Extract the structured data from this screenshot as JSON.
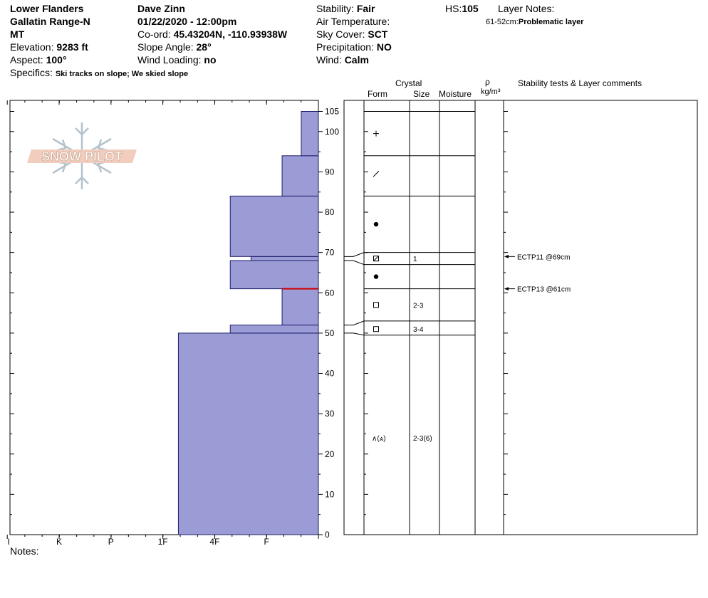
{
  "header": {
    "location": "Lower Flanders",
    "range": "Gallatin Range-N",
    "state": "MT",
    "elevation_label": "Elevation: ",
    "elevation_value": "9283 ft",
    "aspect_label": "Aspect: ",
    "aspect_value": "100°",
    "specifics_label": "Specifics: ",
    "specifics_value": "Ski tracks on slope; We skied slope",
    "observer": "Dave Zinn",
    "datetime": "01/22/2020 - 12:00pm",
    "coord_label": "Co-ord: ",
    "coord_value": "45.43204N, -110.93938W",
    "slope_label": "Slope Angle: ",
    "slope_value": "28°",
    "wind_loading_label": "Wind Loading: ",
    "wind_loading_value": "no",
    "stability_label": "Stability: ",
    "stability_value": "Fair",
    "air_temp_label": "Air Temperature:",
    "sky_label": "Sky Cover: ",
    "sky_value": "SCT",
    "precip_label": "Precipitation: ",
    "precip_value": "NO",
    "wind_label": "Wind: ",
    "wind_value": "Calm",
    "hs_label": "HS:",
    "hs_value": "105",
    "layer_notes_label": "Layer Notes:",
    "layer_note_range": "61-52cm:",
    "layer_note_text": "Problematic layer"
  },
  "logo": {
    "text": "SNOW PILOT"
  },
  "columns": {
    "crystal": "Crystal",
    "form": "Form",
    "size": "Size",
    "moisture": "Moisture",
    "rho": "ρ",
    "density_unit": "kg/m³",
    "comments": "Stability tests & Layer comments"
  },
  "notes_label": "Notes:",
  "colors": {
    "layer_fill": "#9b9bd6",
    "layer_stroke": "#1f1f6b",
    "problem_line": "#cc0000"
  },
  "chart_data": {
    "type": "bar",
    "orientation": "horizontal",
    "title": "",
    "xlabel": "",
    "ylabel": "",
    "hardness_scale": [
      "I",
      "K",
      "P",
      "1F",
      "4F",
      "F"
    ],
    "hardness_scale_note": "x value = number of steps from the right edge (0 = F ... 6 = I); tick labels printed as shown",
    "ylim": [
      0,
      108
    ],
    "y_ticks": [
      0,
      10,
      20,
      30,
      40,
      50,
      60,
      70,
      80,
      90,
      100,
      105
    ],
    "layers": [
      {
        "bottom": 0,
        "top": 50,
        "hardness_steps": 2.7
      },
      {
        "bottom": 50,
        "top": 52,
        "hardness_steps": 1.7
      },
      {
        "bottom": 52,
        "top": 61,
        "hardness_steps": 0.7
      },
      {
        "bottom": 61,
        "top": 68,
        "hardness_steps": 1.7
      },
      {
        "bottom": 68,
        "top": 69,
        "hardness_steps": 1.3
      },
      {
        "bottom": 69,
        "top": 84,
        "hardness_steps": 1.7
      },
      {
        "bottom": 84,
        "top": 94,
        "hardness_steps": 0.7
      },
      {
        "bottom": 94,
        "top": 105,
        "hardness_steps": 0.33
      }
    ],
    "problem_line_height": 61,
    "layer_boundaries": [
      105,
      94,
      84,
      70,
      67,
      61,
      53,
      49.5
    ],
    "crystal_rows": [
      {
        "height": 99.5,
        "form": "plus",
        "size": ""
      },
      {
        "height": 89.5,
        "form": "slash",
        "size": ""
      },
      {
        "height": 77,
        "form": "dot",
        "size": ""
      },
      {
        "height": 68.5,
        "form": "box-x",
        "size": "1"
      },
      {
        "height": 64,
        "form": "dot",
        "size": ""
      },
      {
        "height": 57,
        "form": "box",
        "size": "2-3"
      },
      {
        "height": 51,
        "form": "box",
        "size": "3-4"
      },
      {
        "height": 24,
        "form": "depth-hoar",
        "symbol": "∧(⩓)",
        "size": "2-3(6)"
      }
    ],
    "stability_tests": [
      {
        "height": 69,
        "label": "ECTP11 @69cm"
      },
      {
        "height": 61,
        "label": "ECTP13 @61cm"
      }
    ]
  }
}
